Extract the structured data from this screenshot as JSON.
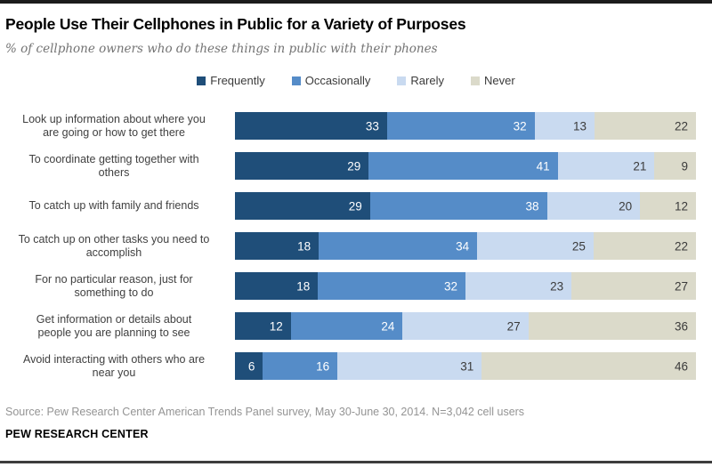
{
  "page": {
    "title": "People Use Their Cellphones in Public for a Variety of Purposes",
    "subtitle": "% of cellphone owners who do these things in public with their phones"
  },
  "chart_data": {
    "type": "bar",
    "orientation": "horizontal",
    "stacked": true,
    "units": "% of cellphone owners",
    "xlim": [
      0,
      100
    ],
    "grid": false,
    "legend_position": "top-center",
    "value_labels": "inside-right",
    "categories": [
      "Look up information about where you\nare going or how to get there",
      "To coordinate getting together with\nothers",
      "To catch up with family and friends",
      "To catch up on other tasks you need to\naccomplish",
      "For no particular reason, just for\nsomething to do",
      "Get information or details about\npeople you are planning to see",
      "Avoid interacting with others who are\nnear you"
    ],
    "series": [
      {
        "name": "Frequently",
        "color": "#1F4E79",
        "text_color": "#FFFFFF",
        "values": [
          33,
          29,
          29,
          18,
          18,
          12,
          6
        ]
      },
      {
        "name": "Occasionally",
        "color": "#558CC8",
        "text_color": "#FFFFFF",
        "values": [
          32,
          41,
          38,
          34,
          32,
          24,
          16
        ]
      },
      {
        "name": "Rarely",
        "color": "#C9DAF0",
        "text_color": "#3B3B3B",
        "values": [
          13,
          21,
          20,
          25,
          23,
          27,
          31
        ]
      },
      {
        "name": "Never",
        "color": "#DBDACA",
        "text_color": "#3B3B3B",
        "values": [
          22,
          9,
          12,
          22,
          27,
          36,
          46
        ]
      }
    ]
  },
  "footer": {
    "source": "Source: Pew Research Center American Trends Panel survey, May 30-June 30, 2014. N=3,042 cell users",
    "brand": "PEW RESEARCH CENTER"
  },
  "style": {
    "top_bar_color": "#1C1C1C",
    "bottom_rule_color": "#3D3D3D",
    "subtitle_color": "#737373",
    "source_color": "#949494",
    "category_label_color": "#404040"
  }
}
